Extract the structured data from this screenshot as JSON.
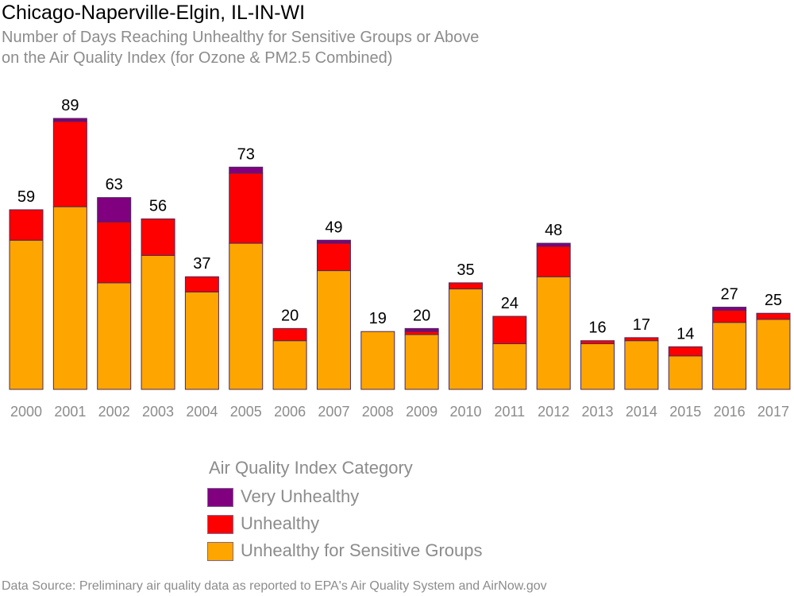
{
  "header": {
    "title": "Chicago-Naperville-Elgin, IL-IN-WI",
    "subtitle_line1": "Number of Days Reaching Unhealthy for Sensitive Groups or Above",
    "subtitle_line2": "on the Air Quality Index (for Ozone & PM2.5 Combined)"
  },
  "legend": {
    "title": "Air Quality Index Category",
    "items": [
      {
        "label": "Very Unhealthy",
        "color": "#800080"
      },
      {
        "label": "Unhealthy",
        "color": "#ff0000"
      },
      {
        "label": "Unhealthy for Sensitive Groups",
        "color": "#ffa500"
      }
    ]
  },
  "footer": {
    "source": "Data Source: Preliminary air quality data as reported to EPA's Air Quality System and AirNow.gov"
  },
  "chart_data": {
    "type": "bar",
    "stacked": true,
    "title": "Chicago-Naperville-Elgin, IL-IN-WI",
    "categories": [
      "2000",
      "2001",
      "2002",
      "2003",
      "2004",
      "2005",
      "2006",
      "2007",
      "2008",
      "2009",
      "2010",
      "2011",
      "2012",
      "2013",
      "2014",
      "2015",
      "2016",
      "2017"
    ],
    "series": [
      {
        "name": "Unhealthy for Sensitive Groups",
        "color": "#ffa500",
        "values": [
          49,
          60,
          35,
          44,
          32,
          48,
          16,
          39,
          19,
          18,
          33,
          15,
          37,
          15,
          16,
          11,
          22,
          23
        ]
      },
      {
        "name": "Unhealthy",
        "color": "#ff0000",
        "values": [
          10,
          28,
          20,
          12,
          5,
          23,
          4,
          9,
          0,
          1,
          2,
          9,
          10,
          1,
          1,
          3,
          4,
          2
        ]
      },
      {
        "name": "Very Unhealthy",
        "color": "#800080",
        "values": [
          0,
          1,
          8,
          0,
          0,
          2,
          0,
          1,
          0,
          1,
          0,
          0,
          1,
          0,
          0,
          0,
          1,
          0
        ]
      }
    ],
    "totals": [
      59,
      89,
      63,
      56,
      37,
      73,
      20,
      49,
      19,
      20,
      35,
      24,
      48,
      16,
      17,
      14,
      27,
      25
    ],
    "ylim": [
      0,
      89
    ],
    "grid": false,
    "legend_position": "bottom"
  }
}
